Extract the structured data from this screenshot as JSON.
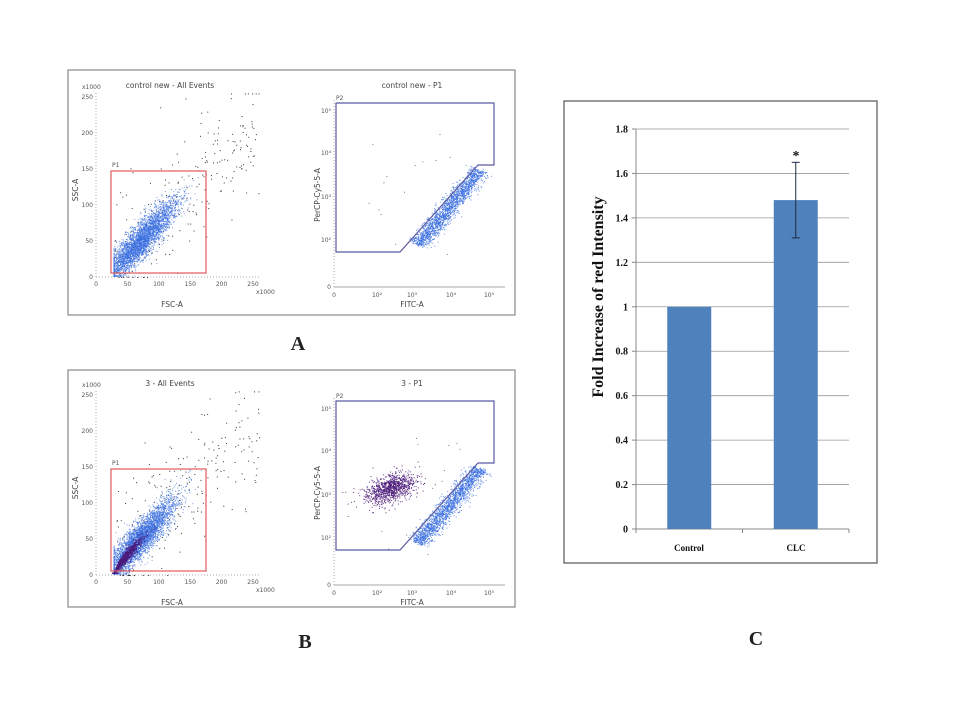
{
  "panel_labels": {
    "a": "A",
    "b": "B",
    "c": "C"
  },
  "colors": {
    "bar": "#4f81bd",
    "gate_p1": "#e05a5a",
    "gate_p2": "#5a5aa0",
    "events_blue": "#3a6fe0",
    "events_purple": "#4b1a7a",
    "events_black": "#333333"
  },
  "flow_plots": [
    {
      "panel": "A",
      "title": "control new - All Events",
      "xlabel": "FSC-A",
      "ylabel": "SSC-A",
      "gate": "P1",
      "x_ticks": [
        "0",
        "50",
        "100",
        "150",
        "200",
        "250"
      ],
      "y_ticks": [
        "0",
        "50",
        "100",
        "150",
        "200",
        "250"
      ],
      "x_unit": "x1000",
      "y_unit": "x1000"
    },
    {
      "panel": "A",
      "title": "control new - P1",
      "xlabel": "FITC-A",
      "ylabel": "PerCP-Cy5-5-A",
      "gate": "P2",
      "x_ticks": [
        "0",
        "10²",
        "10³",
        "10⁴",
        "10⁵"
      ],
      "y_ticks": [
        "0",
        "10²",
        "10³",
        "10⁴",
        "10⁵"
      ]
    },
    {
      "panel": "B",
      "title": "3 - All Events",
      "xlabel": "FSC-A",
      "ylabel": "SSC-A",
      "gate": "P1",
      "x_ticks": [
        "0",
        "50",
        "100",
        "150",
        "200",
        "250"
      ],
      "y_ticks": [
        "0",
        "50",
        "100",
        "150",
        "200",
        "250"
      ],
      "x_unit": "x1000",
      "y_unit": "x1000"
    },
    {
      "panel": "B",
      "title": "3 - P1",
      "xlabel": "FITC-A",
      "ylabel": "PerCP-Cy5-5-A",
      "gate": "P2",
      "x_ticks": [
        "0",
        "10²",
        "10³",
        "10⁴",
        "10⁵"
      ],
      "y_ticks": [
        "0",
        "10²",
        "10³",
        "10⁴",
        "10⁵"
      ]
    }
  ],
  "chart_data": {
    "type": "bar",
    "categories": [
      "Control",
      "CLC"
    ],
    "values": [
      1.0,
      1.48
    ],
    "errors": [
      0.0,
      0.17
    ],
    "annotations": [
      "",
      "*"
    ],
    "title": "",
    "xlabel": "",
    "ylabel": "Fold Increase of red Intensity",
    "ylim": [
      0,
      1.8
    ],
    "y_ticks": [
      "0",
      "0.2",
      "0.4",
      "0.6",
      "0.8",
      "1",
      "1.2",
      "1.4",
      "1.6",
      "1.8"
    ],
    "grid": true,
    "legend": "none"
  }
}
